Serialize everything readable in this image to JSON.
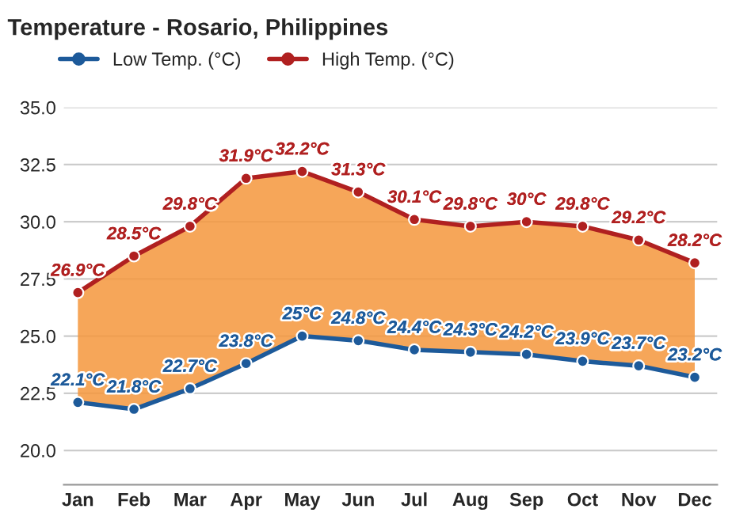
{
  "chart_data": {
    "type": "line",
    "title": "Temperature - Rosario, Philippines",
    "categories": [
      "Jan",
      "Feb",
      "Mar",
      "Apr",
      "May",
      "Jun",
      "Jul",
      "Aug",
      "Sep",
      "Oct",
      "Nov",
      "Dec"
    ],
    "series": [
      {
        "name": "Low Temp. (°C)",
        "color": "#1d5a9a",
        "values": [
          22.1,
          21.8,
          22.7,
          23.8,
          25,
          24.8,
          24.4,
          24.3,
          24.2,
          23.9,
          23.7,
          23.2
        ],
        "value_labels": [
          "22.1°C",
          "21.8°C",
          "22.7°C",
          "23.8°C",
          "25°C",
          "24.8°C",
          "24.4°C",
          "24.3°C",
          "24.2°C",
          "23.9°C",
          "23.7°C",
          "23.2°C"
        ]
      },
      {
        "name": "High Temp. (°C)",
        "type": "area",
        "color": "#b02020",
        "values": [
          26.9,
          28.5,
          29.8,
          31.9,
          32.2,
          31.3,
          30.1,
          29.8,
          30,
          29.8,
          29.2,
          28.2
        ],
        "value_labels": [
          "26.9°C",
          "28.5°C",
          "29.8°C",
          "31.9°C",
          "32.2°C",
          "31.3°C",
          "30.1°C",
          "29.8°C",
          "30°C",
          "29.8°C",
          "29.2°C",
          "28.2°C"
        ]
      }
    ],
    "ylim": [
      18.5,
      35
    ],
    "yticks": [
      {
        "value": 20,
        "label": "20.0"
      },
      {
        "value": 22.5,
        "label": "22.5"
      },
      {
        "value": 25,
        "label": "25.0"
      },
      {
        "value": 27.5,
        "label": "27.5"
      },
      {
        "value": 30,
        "label": "30.0"
      },
      {
        "value": 32.5,
        "label": "32.5"
      },
      {
        "value": 35,
        "label": "35.0"
      }
    ],
    "grid": "y",
    "legend": "top left",
    "marker": "circle"
  }
}
